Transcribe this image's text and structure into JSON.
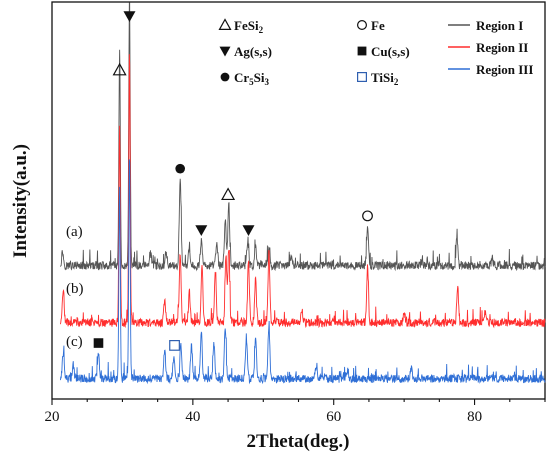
{
  "chart_data": {
    "type": "line",
    "title": "",
    "xlabel": "2Theta(deg.)",
    "ylabel": "Intensity(a.u.)",
    "xlim": [
      20,
      90
    ],
    "xticks": [
      20,
      40,
      60,
      80
    ],
    "y_tick_labels": "none",
    "grid": false,
    "legend_position": "top-right",
    "series": [
      {
        "name": "Region I",
        "curve_label": "(a)",
        "color": "#555555",
        "peaks": [
          {
            "x": 21.5,
            "h": 0.12
          },
          {
            "x": 29.6,
            "h": 1.85
          },
          {
            "x": 31.0,
            "h": 2.3
          },
          {
            "x": 34.0,
            "h": 0.1
          },
          {
            "x": 36.2,
            "h": 0.12
          },
          {
            "x": 38.2,
            "h": 0.74
          },
          {
            "x": 39.5,
            "h": 0.14
          },
          {
            "x": 41.2,
            "h": 0.22
          },
          {
            "x": 43.4,
            "h": 0.2
          },
          {
            "x": 44.6,
            "h": 0.4
          },
          {
            "x": 45.1,
            "h": 0.52
          },
          {
            "x": 47.8,
            "h": 0.22
          },
          {
            "x": 48.9,
            "h": 0.16
          },
          {
            "x": 50.8,
            "h": 0.14
          },
          {
            "x": 54.0,
            "h": 0.08
          },
          {
            "x": 64.8,
            "h": 0.34
          },
          {
            "x": 77.5,
            "h": 0.24
          },
          {
            "x": 82.5,
            "h": 0.06
          }
        ]
      },
      {
        "name": "Region II",
        "curve_label": "(b)",
        "color": "#ff2d2d",
        "peaks": [
          {
            "x": 21.6,
            "h": 0.28
          },
          {
            "x": 29.6,
            "h": 1.7
          },
          {
            "x": 31.0,
            "h": 2.3
          },
          {
            "x": 36.0,
            "h": 0.18
          },
          {
            "x": 38.2,
            "h": 0.58
          },
          {
            "x": 39.5,
            "h": 0.26
          },
          {
            "x": 41.3,
            "h": 0.48
          },
          {
            "x": 43.2,
            "h": 0.44
          },
          {
            "x": 44.7,
            "h": 0.56
          },
          {
            "x": 45.1,
            "h": 0.62
          },
          {
            "x": 47.9,
            "h": 0.52
          },
          {
            "x": 48.9,
            "h": 0.38
          },
          {
            "x": 50.8,
            "h": 0.6
          },
          {
            "x": 55.5,
            "h": 0.1
          },
          {
            "x": 64.8,
            "h": 0.46
          },
          {
            "x": 70.0,
            "h": 0.1
          },
          {
            "x": 77.6,
            "h": 0.3
          },
          {
            "x": 81.5,
            "h": 0.1
          }
        ]
      },
      {
        "name": "Region III",
        "curve_label": "(c)",
        "color": "#2f6fd6",
        "peaks": [
          {
            "x": 21.6,
            "h": 0.22
          },
          {
            "x": 23.0,
            "h": 0.12
          },
          {
            "x": 26.6,
            "h": 0.22
          },
          {
            "x": 29.6,
            "h": 1.6
          },
          {
            "x": 31.0,
            "h": 1.9
          },
          {
            "x": 36.0,
            "h": 0.26
          },
          {
            "x": 37.3,
            "h": 0.2
          },
          {
            "x": 38.3,
            "h": 0.3
          },
          {
            "x": 39.8,
            "h": 0.28
          },
          {
            "x": 41.2,
            "h": 0.4
          },
          {
            "x": 43.0,
            "h": 0.3
          },
          {
            "x": 44.6,
            "h": 0.44
          },
          {
            "x": 47.6,
            "h": 0.36
          },
          {
            "x": 48.9,
            "h": 0.34
          },
          {
            "x": 50.8,
            "h": 0.46
          },
          {
            "x": 57.5,
            "h": 0.1
          },
          {
            "x": 62.0,
            "h": 0.07
          },
          {
            "x": 71.0,
            "h": 0.08
          }
        ]
      }
    ],
    "phase_legend": [
      {
        "symbol": "open-triangle",
        "label": "FeSi",
        "sub": "2"
      },
      {
        "symbol": "open-circle",
        "label": "Fe",
        "sub": ""
      },
      {
        "symbol": "filled-triangle-down",
        "label": "Ag(s,s)",
        "sub": ""
      },
      {
        "symbol": "filled-square",
        "label": "Cu(s,s)",
        "sub": ""
      },
      {
        "symbol": "filled-circle",
        "label": "Cr",
        "sub": "5",
        "label2": "Si",
        "sub2": "3"
      },
      {
        "symbol": "open-square",
        "label": "TiSi",
        "sub": "2"
      }
    ],
    "phase_markers": [
      {
        "symbol": "filled-triangle-down",
        "x": 31.0,
        "series": 0
      },
      {
        "symbol": "open-triangle",
        "x": 29.6,
        "series": 0
      },
      {
        "symbol": "filled-circle",
        "x": 38.2,
        "series": 0
      },
      {
        "symbol": "filled-triangle-down",
        "x": 41.2,
        "series": 0
      },
      {
        "symbol": "open-triangle",
        "x": 45.0,
        "series": 0
      },
      {
        "symbol": "filled-triangle-down",
        "x": 47.9,
        "series": 0
      },
      {
        "symbol": "open-circle",
        "x": 64.8,
        "series": 0
      },
      {
        "symbol": "filled-square",
        "x": 26.6,
        "series": 2
      },
      {
        "symbol": "open-square",
        "x": 37.4,
        "series": 2
      }
    ]
  }
}
